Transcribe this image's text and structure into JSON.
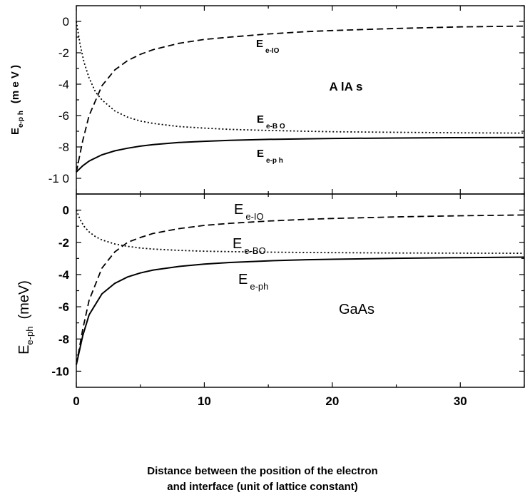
{
  "chart_data": [
    {
      "type": "line",
      "panel": "top",
      "xlim": [
        0,
        35
      ],
      "ylim": [
        -11,
        1
      ],
      "yticks": [
        "0",
        "-2",
        "-4",
        "-6",
        "-8",
        "-1 0"
      ],
      "ytick_values": [
        0,
        -2,
        -4,
        -6,
        -8,
        -10
      ],
      "ylabel": {
        "main": "E",
        "sub": "e-p h",
        "unit": "(m e V )"
      },
      "material_label": "A lA s",
      "series": [
        {
          "name": "E e-IO",
          "label_main": "E",
          "label_sub": "e-IO",
          "style": "dashed",
          "x": [
            0,
            0.5,
            1,
            2,
            3,
            4,
            5,
            6,
            8,
            10,
            12,
            15,
            18,
            20,
            25,
            30,
            35
          ],
          "y": [
            -9.6,
            -7.6,
            -6.0,
            -4.1,
            -3.1,
            -2.5,
            -2.1,
            -1.8,
            -1.4,
            -1.15,
            -1.0,
            -0.8,
            -0.65,
            -0.58,
            -0.45,
            -0.35,
            -0.3
          ]
        },
        {
          "name": "E e-BO",
          "label_main": "E",
          "label_sub": "e-B O",
          "style": "dotted",
          "x": [
            0,
            0.3,
            0.6,
            1,
            1.5,
            2,
            3,
            4,
            5,
            6,
            8,
            10,
            12,
            15,
            18,
            20,
            25,
            30,
            35
          ],
          "y": [
            0,
            -1.5,
            -2.6,
            -3.6,
            -4.5,
            -5.0,
            -5.7,
            -6.1,
            -6.35,
            -6.5,
            -6.7,
            -6.8,
            -6.88,
            -6.95,
            -7.0,
            -7.03,
            -7.07,
            -7.1,
            -7.12
          ]
        },
        {
          "name": "E e-ph",
          "label_main": "E",
          "label_sub": "e-p h",
          "style": "solid",
          "x": [
            0,
            0.5,
            1,
            2,
            3,
            4,
            5,
            6,
            8,
            10,
            12,
            15,
            18,
            20,
            25,
            30,
            35
          ],
          "y": [
            -9.6,
            -9.2,
            -8.9,
            -8.5,
            -8.25,
            -8.08,
            -7.95,
            -7.85,
            -7.72,
            -7.64,
            -7.58,
            -7.52,
            -7.48,
            -7.46,
            -7.43,
            -7.41,
            -7.4
          ]
        }
      ]
    },
    {
      "type": "line",
      "panel": "bottom",
      "xlim": [
        0,
        35
      ],
      "ylim": [
        -11,
        1
      ],
      "xticks": [
        "0",
        "10",
        "20",
        "30"
      ],
      "xtick_values": [
        0,
        10,
        20,
        30
      ],
      "yticks": [
        "0",
        "-2",
        "-4",
        "-6",
        "-8",
        "-10"
      ],
      "ytick_values": [
        0,
        -2,
        -4,
        -6,
        -8,
        -10
      ],
      "ylabel": {
        "main": "E",
        "sub": "e-ph",
        "unit": "(meV)"
      },
      "material_label": "GaAs",
      "series": [
        {
          "name": "E e-IO",
          "label_main": "E",
          "label_sub": "e-IO",
          "style": "dashed",
          "x": [
            0,
            0.5,
            1,
            2,
            3,
            4,
            5,
            6,
            8,
            10,
            12,
            15,
            18,
            20,
            25,
            30,
            35
          ],
          "y": [
            -9.6,
            -7.4,
            -5.6,
            -3.6,
            -2.6,
            -2.0,
            -1.7,
            -1.45,
            -1.15,
            -0.95,
            -0.82,
            -0.68,
            -0.57,
            -0.52,
            -0.42,
            -0.35,
            -0.3
          ]
        },
        {
          "name": "E e-BO",
          "label_main": "E",
          "label_sub": "e-BO",
          "style": "dotted",
          "x": [
            0,
            0.3,
            0.6,
            1,
            1.5,
            2,
            3,
            4,
            5,
            6,
            8,
            10,
            12,
            15,
            18,
            20,
            25,
            30,
            35
          ],
          "y": [
            0,
            -0.6,
            -1.0,
            -1.35,
            -1.65,
            -1.85,
            -2.1,
            -2.25,
            -2.35,
            -2.42,
            -2.5,
            -2.55,
            -2.58,
            -2.61,
            -2.63,
            -2.64,
            -2.66,
            -2.67,
            -2.68
          ]
        },
        {
          "name": "E e-ph",
          "label_main": "E",
          "label_sub": "e-ph",
          "style": "solid",
          "x": [
            0,
            0.5,
            1,
            2,
            3,
            4,
            5,
            6,
            8,
            10,
            12,
            15,
            18,
            20,
            25,
            30,
            35
          ],
          "y": [
            -9.6,
            -7.8,
            -6.5,
            -5.2,
            -4.55,
            -4.15,
            -3.9,
            -3.72,
            -3.5,
            -3.35,
            -3.25,
            -3.15,
            -3.08,
            -3.05,
            -2.99,
            -2.95,
            -2.92
          ]
        }
      ]
    }
  ],
  "xlabel_lines": [
    "Distance between the position of the electron",
    "and interface  (unit of lattice constant)"
  ]
}
